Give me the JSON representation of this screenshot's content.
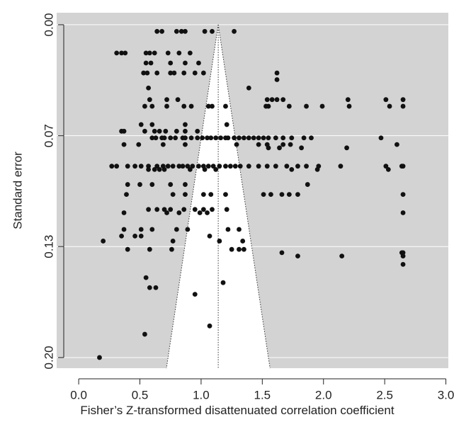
{
  "chart_data": {
    "type": "scatter",
    "xlabel": "Fisher’s Z-transformed disattenuated correlation coefficient",
    "ylabel": "Standard error",
    "xlim": [
      -0.18,
      3.02
    ],
    "ylim": [
      0.2064,
      -0.0072
    ],
    "xticks": [
      {
        "value": 0,
        "label": "0.0"
      },
      {
        "value": 0.5,
        "label": "0.5"
      },
      {
        "value": 1,
        "label": "1.0"
      },
      {
        "value": 1.5,
        "label": "1.5"
      },
      {
        "value": 2,
        "label": "2.0"
      },
      {
        "value": 2.5,
        "label": "2.5"
      },
      {
        "value": 3,
        "label": "3.0"
      }
    ],
    "yticks": [
      {
        "value": 0,
        "label": "0.00"
      },
      {
        "value": 0.0667,
        "label": "0.07"
      },
      {
        "value": 0.1333,
        "label": "0.13"
      },
      {
        "value": 0.2,
        "label": "0.20"
      }
    ],
    "grid": true,
    "color": "#111111",
    "funnel": {
      "apex": [
        1.14,
        0
      ],
      "base_y": 0.2,
      "base_x": [
        0.73,
        1.55
      ]
    },
    "x": [
      0.64,
      0.68,
      0.8,
      0.84,
      0.87,
      1.03,
      1.09,
      1.27,
      0.31,
      0.35,
      0.38,
      0.55,
      0.58,
      0.62,
      0.73,
      0.82,
      0.91,
      0.55,
      0.59,
      0.75,
      0.87,
      0.98,
      0.53,
      0.56,
      0.64,
      0.75,
      0.78,
      0.86,
      0.95,
      1.02,
      1.62,
      1.62,
      0.57,
      1.39,
      0.58,
      0.72,
      0.81,
      1.54,
      1.58,
      1.62,
      1.67,
      2.2,
      2.51,
      2.65,
      0.54,
      0.6,
      0.72,
      0.86,
      0.92,
      1.06,
      1.09,
      1.2,
      1.53,
      1.55,
      1.72,
      1.86,
      1.99,
      2.21,
      2.54,
      2.65,
      0.51,
      0.6,
      0.87,
      1.21,
      0.35,
      0.37,
      0.54,
      0.62,
      0.66,
      0.71,
      0.8,
      0.87,
      0.97,
      0.6,
      0.63,
      0.68,
      0.7,
      0.75,
      0.79,
      0.85,
      0.87,
      0.92,
      0.97,
      1.01,
      1.05,
      1.08,
      1.12,
      1.16,
      1.2,
      1.22,
      1.27,
      1.31,
      1.35,
      1.39,
      1.43,
      1.47,
      1.51,
      1.55,
      1.61,
      1.67,
      1.74,
      1.84,
      1.9,
      2.47,
      0.37,
      0.49,
      0.69,
      0.87,
      1.29,
      1.47,
      1.54,
      1.67,
      1.73,
      2.6,
      1.55,
      1.64,
      1.82,
      2.19,
      0.27,
      0.31,
      0.4,
      0.46,
      0.51,
      0.57,
      0.64,
      0.69,
      0.73,
      0.77,
      0.82,
      0.85,
      0.89,
      0.93,
      0.98,
      1.02,
      1.06,
      1.1,
      1.15,
      1.2,
      1.24,
      1.28,
      1.32,
      1.39,
      1.47,
      1.54,
      1.61,
      1.7,
      1.79,
      1.86,
      1.96,
      2.14,
      2.51,
      2.64,
      2.65,
      0.57,
      0.62,
      0.66,
      0.7,
      0.91,
      1.03,
      1.12,
      1.74,
      1.95,
      2.53,
      0.4,
      0.5,
      0.6,
      0.75,
      0.87,
      1.87,
      0.39,
      0.77,
      0.87,
      1.02,
      1.08,
      1.2,
      1.51,
      1.57,
      1.66,
      1.72,
      1.79,
      2.65,
      0.57,
      0.64,
      0.7,
      0.75,
      0.86,
      0.95,
      1.02,
      1.09,
      1.21,
      0.37,
      0.72,
      0.82,
      0.99,
      1.05,
      2.65,
      0.37,
      0.51,
      0.6,
      0.8,
      0.89,
      1.22,
      1.31,
      0.35,
      0.46,
      0.51,
      1.07,
      0.2,
      0.77,
      1.15,
      1.34,
      0.4,
      0.58,
      0.76,
      1.25,
      1.31,
      1.35,
      1.66,
      2.64,
      2.65,
      1.79,
      2.15,
      2.65,
      2.65,
      0.55,
      1.18,
      0.58,
      0.63,
      0.95,
      1.07,
      0.54,
      0.17
    ],
    "values": [
      0.004,
      0.004,
      0.004,
      0.004,
      0.004,
      0.004,
      0.004,
      0.004,
      0.017,
      0.017,
      0.017,
      0.017,
      0.017,
      0.017,
      0.017,
      0.017,
      0.017,
      0.023,
      0.023,
      0.023,
      0.023,
      0.023,
      0.029,
      0.029,
      0.029,
      0.029,
      0.029,
      0.029,
      0.029,
      0.029,
      0.029,
      0.033,
      0.038,
      0.038,
      0.045,
      0.045,
      0.045,
      0.045,
      0.045,
      0.045,
      0.045,
      0.045,
      0.045,
      0.045,
      0.049,
      0.049,
      0.049,
      0.049,
      0.049,
      0.049,
      0.049,
      0.049,
      0.049,
      0.049,
      0.049,
      0.049,
      0.049,
      0.049,
      0.049,
      0.049,
      0.06,
      0.06,
      0.06,
      0.06,
      0.064,
      0.064,
      0.064,
      0.064,
      0.064,
      0.064,
      0.064,
      0.064,
      0.064,
      0.068,
      0.068,
      0.068,
      0.068,
      0.068,
      0.068,
      0.068,
      0.068,
      0.068,
      0.068,
      0.068,
      0.068,
      0.068,
      0.068,
      0.068,
      0.068,
      0.068,
      0.068,
      0.068,
      0.068,
      0.068,
      0.068,
      0.068,
      0.068,
      0.068,
      0.068,
      0.068,
      0.068,
      0.068,
      0.068,
      0.068,
      0.072,
      0.072,
      0.072,
      0.072,
      0.072,
      0.072,
      0.072,
      0.072,
      0.072,
      0.072,
      0.074,
      0.074,
      0.074,
      0.074,
      0.085,
      0.085,
      0.085,
      0.085,
      0.085,
      0.085,
      0.085,
      0.085,
      0.085,
      0.085,
      0.085,
      0.085,
      0.085,
      0.085,
      0.085,
      0.085,
      0.085,
      0.085,
      0.085,
      0.085,
      0.085,
      0.085,
      0.085,
      0.085,
      0.085,
      0.085,
      0.085,
      0.085,
      0.085,
      0.085,
      0.085,
      0.085,
      0.085,
      0.085,
      0.085,
      0.087,
      0.087,
      0.087,
      0.087,
      0.087,
      0.087,
      0.087,
      0.087,
      0.087,
      0.087,
      0.096,
      0.096,
      0.096,
      0.096,
      0.096,
      0.096,
      0.102,
      0.102,
      0.102,
      0.102,
      0.102,
      0.102,
      0.102,
      0.102,
      0.102,
      0.102,
      0.102,
      0.102,
      0.111,
      0.111,
      0.111,
      0.111,
      0.111,
      0.111,
      0.111,
      0.111,
      0.111,
      0.113,
      0.113,
      0.113,
      0.113,
      0.113,
      0.113,
      0.123,
      0.123,
      0.123,
      0.123,
      0.123,
      0.123,
      0.123,
      0.127,
      0.127,
      0.127,
      0.127,
      0.13,
      0.13,
      0.13,
      0.13,
      0.135,
      0.135,
      0.135,
      0.135,
      0.135,
      0.135,
      0.137,
      0.137,
      0.137,
      0.139,
      0.139,
      0.139,
      0.144,
      0.152,
      0.155,
      0.158,
      0.158,
      0.162,
      0.181,
      0.186,
      0.2
    ]
  }
}
